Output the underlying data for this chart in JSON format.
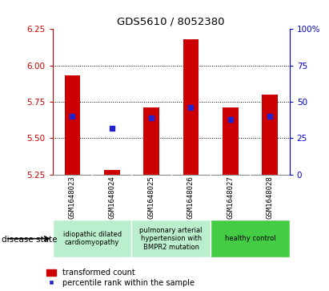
{
  "title": "GDS5610 / 8052380",
  "samples": [
    "GSM1648023",
    "GSM1648024",
    "GSM1648025",
    "GSM1648026",
    "GSM1648027",
    "GSM1648028"
  ],
  "bar_top": [
    5.93,
    5.28,
    5.71,
    6.18,
    5.71,
    5.8
  ],
  "bar_bottom": 5.25,
  "percentile_vals": [
    5.65,
    5.57,
    5.64,
    5.71,
    5.63,
    5.65
  ],
  "ylim_left": [
    5.25,
    6.25
  ],
  "ylim_right": [
    0,
    100
  ],
  "yticks_left": [
    5.25,
    5.5,
    5.75,
    6.0,
    6.25
  ],
  "yticks_right": [
    0,
    25,
    50,
    75,
    100
  ],
  "grid_vals": [
    5.5,
    5.75,
    6.0
  ],
  "bar_color": "#cc0000",
  "blue_color": "#2222cc",
  "label_color_left": "#cc0000",
  "label_color_right": "#0000cc",
  "groups": [
    {
      "indices": [
        0,
        1
      ],
      "label": "idiopathic dilated\ncardiomyopathy",
      "color": "#bbeecc"
    },
    {
      "indices": [
        2,
        3
      ],
      "label": "pulmonary arterial\nhypertension with\nBMPR2 mutation",
      "color": "#bbeecc"
    },
    {
      "indices": [
        4,
        5
      ],
      "label": "healthy control",
      "color": "#44cc44"
    }
  ],
  "legend_bar_label": "transformed count",
  "legend_dot_label": "percentile rank within the sample",
  "disease_state_label": "disease state",
  "bg_color": "#ffffff",
  "sample_bg": "#c8c8c8"
}
